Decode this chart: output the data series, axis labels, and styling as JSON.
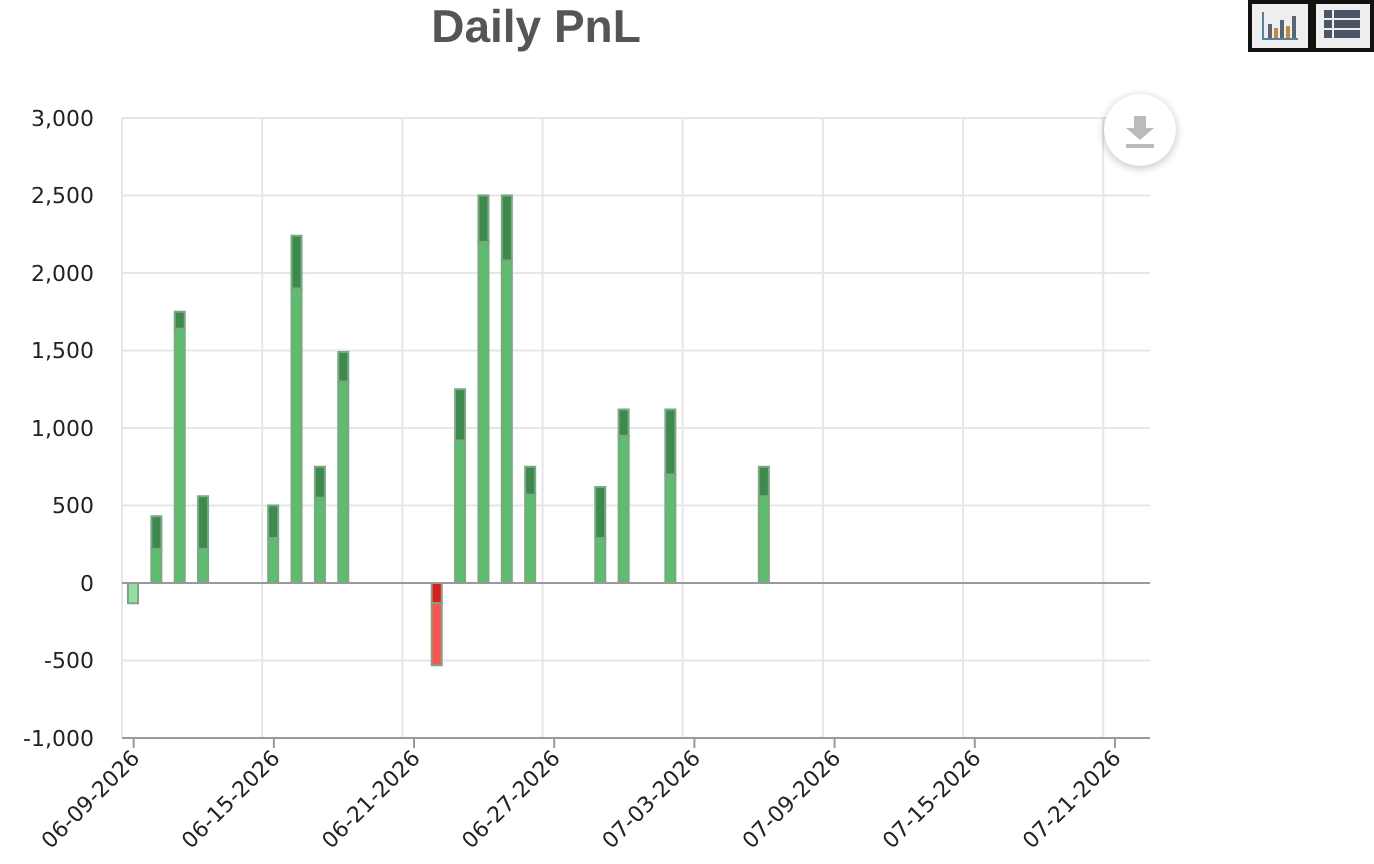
{
  "chart_data": {
    "type": "bar",
    "title": "Daily PnL",
    "categories": [
      "06-09-2026",
      null,
      null,
      null,
      null,
      null,
      "06-15-2026",
      null,
      null,
      null,
      null,
      null,
      "06-21-2026",
      null,
      null,
      null,
      null,
      null,
      "06-27-2026",
      null,
      null,
      null,
      null,
      null,
      "07-03-2026",
      null,
      null,
      null,
      null,
      null,
      "07-09-2026",
      null,
      null,
      null,
      null,
      null,
      "07-15-2026",
      null,
      null,
      null,
      null,
      null,
      "07-21-2026",
      null
    ],
    "series": [
      {
        "color": "#5cbd6c",
        "colors": [
          "#93e0a0",
          null,
          null,
          null,
          null,
          null,
          null,
          null,
          null,
          null,
          null,
          null,
          null,
          "#e01b1b",
          null,
          null,
          null,
          null,
          null,
          null,
          null,
          null,
          null,
          null,
          null,
          null,
          null,
          null,
          null,
          null,
          null,
          null,
          null,
          null,
          null,
          null,
          null,
          null,
          null,
          null,
          null,
          null,
          null,
          null
        ],
        "values": [
          -130,
          220,
          1640,
          220,
          null,
          null,
          290,
          1900,
          550,
          1300,
          null,
          null,
          null,
          -130,
          920,
          2200,
          2080,
          570,
          null,
          null,
          290,
          950,
          null,
          700,
          null,
          null,
          null,
          560,
          null,
          null,
          null,
          null,
          null,
          null,
          null,
          null,
          null,
          null,
          null,
          null,
          null,
          null,
          null,
          null
        ]
      },
      {
        "color": "#3d8a4d",
        "colors": [
          null,
          null,
          null,
          null,
          null,
          null,
          null,
          null,
          null,
          null,
          null,
          null,
          null,
          "#ff4f4f",
          null,
          null,
          null,
          null,
          null,
          null,
          null,
          null,
          null,
          null,
          null,
          null,
          null,
          null,
          null,
          null,
          null,
          null,
          null,
          null,
          null,
          null,
          null,
          null,
          null,
          null,
          null,
          null,
          null,
          null
        ],
        "values": [
          null,
          210,
          110,
          340,
          null,
          null,
          210,
          340,
          200,
          190,
          null,
          null,
          null,
          -400,
          330,
          300,
          420,
          180,
          null,
          null,
          330,
          170,
          null,
          420,
          null,
          null,
          null,
          190,
          null,
          null,
          null,
          null,
          null,
          null,
          null,
          null,
          null,
          null,
          null,
          null,
          null,
          null,
          null,
          null
        ]
      }
    ],
    "stacked": true,
    "ylim": [
      -1000,
      3000
    ],
    "yticks": [
      {
        "value": -1000,
        "label": "-1,000"
      },
      {
        "value": -500,
        "label": "-500"
      },
      0,
      500,
      {
        "value": 1000,
        "label": "1,000"
      },
      {
        "value": 1500,
        "label": "1,500"
      },
      {
        "value": 2000,
        "label": "2,000"
      },
      {
        "value": 2500,
        "label": "2,500"
      },
      {
        "value": 3000,
        "label": "3,000"
      }
    ],
    "grid": true,
    "ref_lines": [
      {
        "axis": "y",
        "value": 0,
        "color": "#999999"
      }
    ]
  }
}
